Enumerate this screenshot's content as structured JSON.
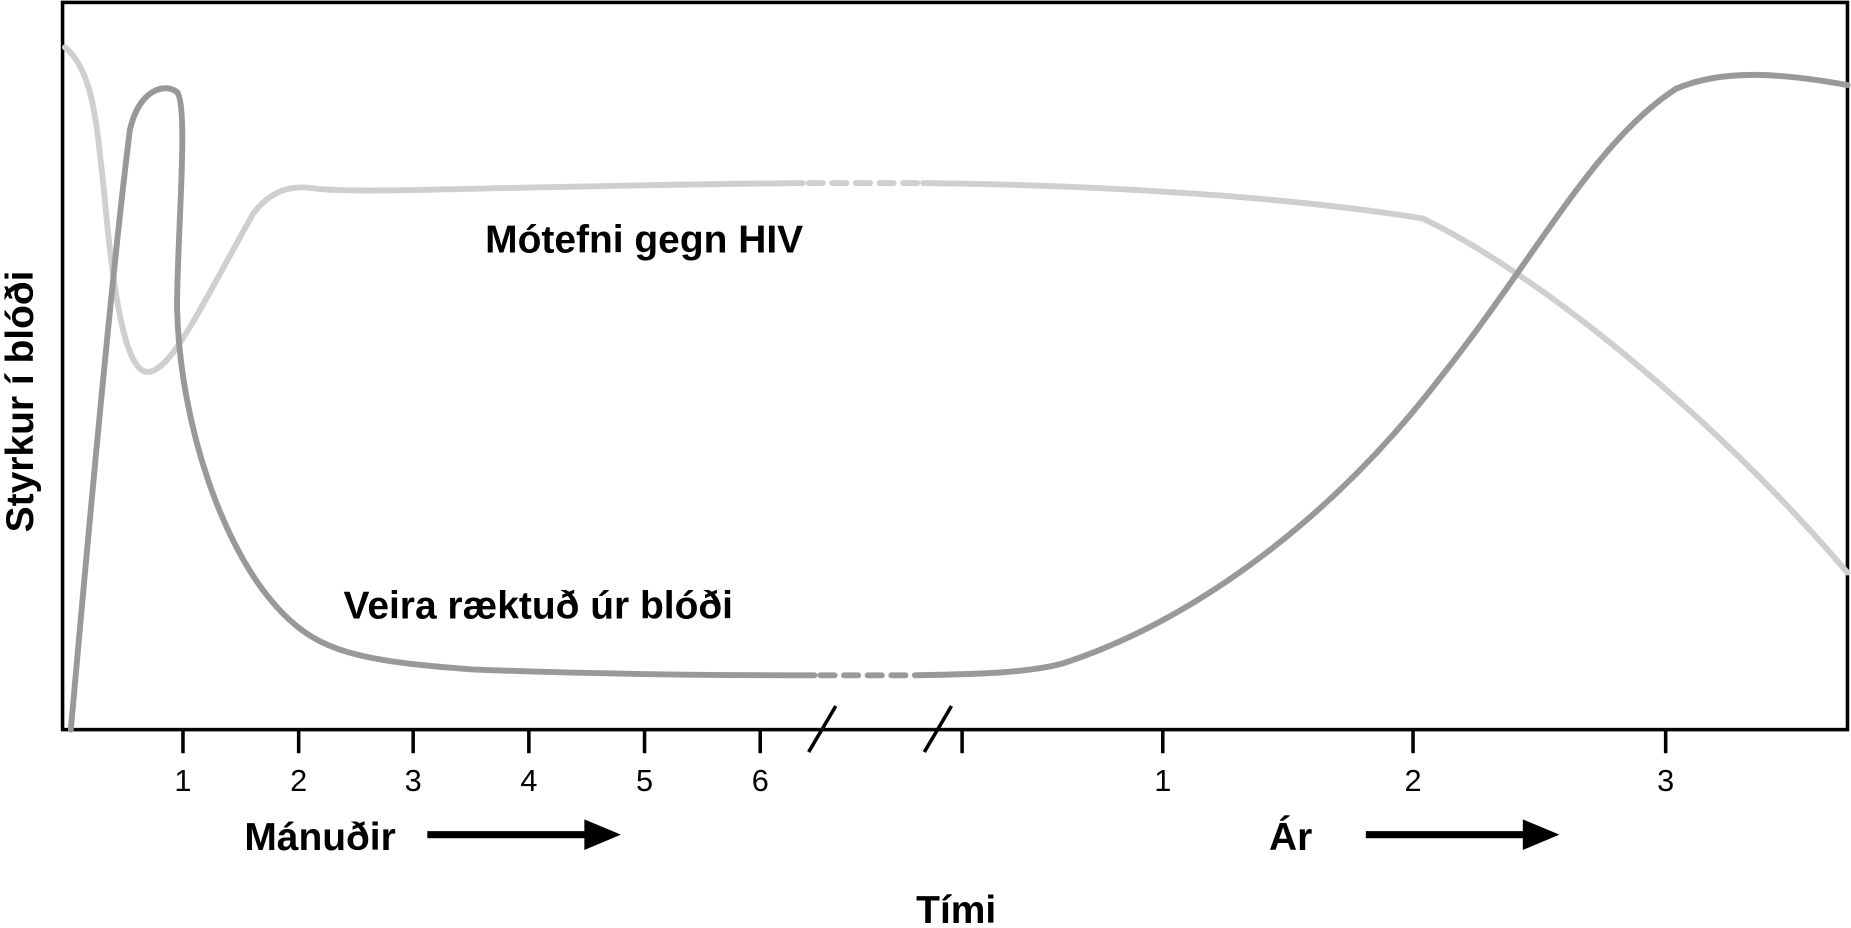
{
  "y_axis_label": "Styrkur í blóði",
  "x_axis_label": "Tími",
  "curves": [
    {
      "label": "Mótefni gegn HIV"
    },
    {
      "label": "Veira ræktuð úr blóði"
    }
  ],
  "months": {
    "label": "Mánuðir",
    "ticks": [
      "1",
      "2",
      "3",
      "4",
      "5",
      "6"
    ]
  },
  "years": {
    "label": "Ár",
    "ticks": [
      "1",
      "2",
      "3"
    ]
  }
}
